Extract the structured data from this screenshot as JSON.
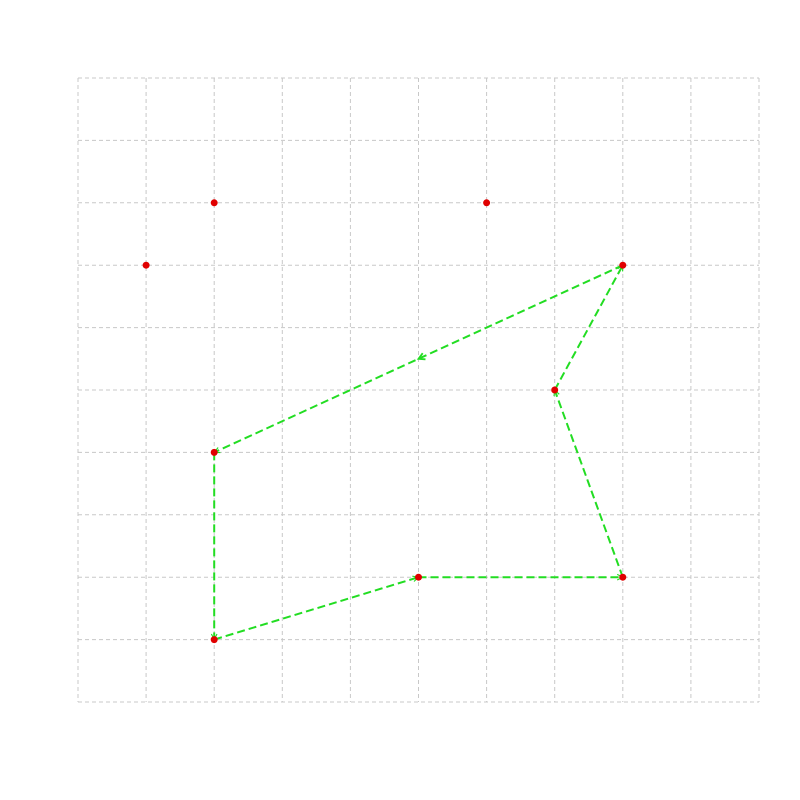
{
  "chart_data": {
    "type": "scatter",
    "xlim": [
      0,
      10
    ],
    "ylim": [
      0,
      10
    ],
    "grid": true,
    "grid_style": "dashed",
    "point_color": "#e00000",
    "path_color": "#22dd22",
    "points": [
      {
        "x": 1,
        "y": 7
      },
      {
        "x": 2,
        "y": 8
      },
      {
        "x": 6,
        "y": 8
      },
      {
        "x": 8,
        "y": 7
      },
      {
        "x": 7,
        "y": 5
      },
      {
        "x": 2,
        "y": 4
      },
      {
        "x": 5,
        "y": 2
      },
      {
        "x": 8,
        "y": 2
      },
      {
        "x": 2,
        "y": 1
      }
    ],
    "path": [
      {
        "x": 8,
        "y": 7
      },
      {
        "x": 2,
        "y": 4
      },
      {
        "x": 2,
        "y": 1
      },
      {
        "x": 5,
        "y": 2
      },
      {
        "x": 8,
        "y": 2
      },
      {
        "x": 7,
        "y": 5
      },
      {
        "x": 8,
        "y": 7
      }
    ],
    "midpoint_arrow_on_segment": 0
  }
}
